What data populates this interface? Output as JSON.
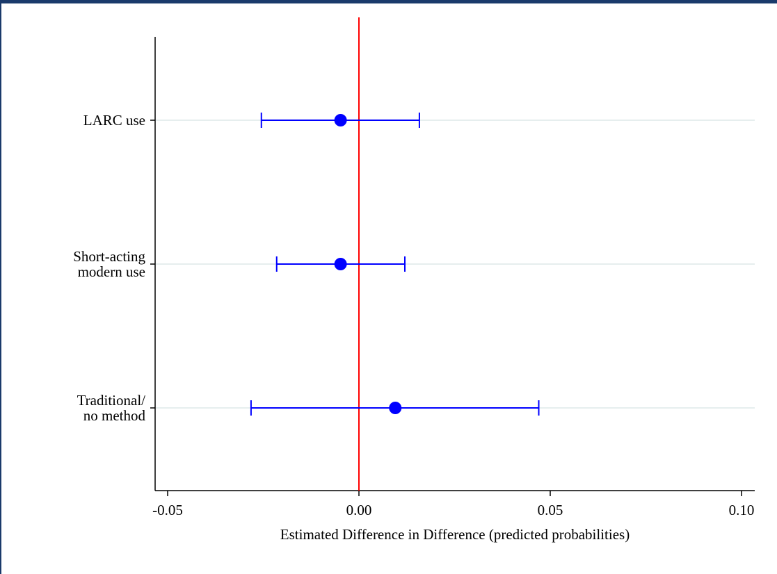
{
  "chart_data": {
    "type": "scatter",
    "subtype": "coefficient-plot",
    "title": "",
    "xlabel": "Estimated Difference in Difference (predicted probabilities)",
    "ylabel": "",
    "xlim": [
      -0.055,
      0.102
    ],
    "xticks": [
      -0.05,
      0.0,
      0.05,
      0.1
    ],
    "xtick_labels": [
      "-0.05",
      "0.00",
      "0.05",
      "0.10"
    ],
    "reference_line": {
      "x": 0.0,
      "color": "#ff0000"
    },
    "grid": "horizontal",
    "categories": [
      {
        "lines": [
          "LARC use"
        ],
        "estimate": -0.0048,
        "ci_low": -0.0255,
        "ci_high": 0.0158
      },
      {
        "lines": [
          "Short-acting",
          "modern use"
        ],
        "estimate": -0.0048,
        "ci_low": -0.0215,
        "ci_high": 0.012
      },
      {
        "lines": [
          "Traditional/",
          "no method"
        ],
        "estimate": 0.0095,
        "ci_low": -0.0282,
        "ci_high": 0.047
      }
    ],
    "colors": {
      "marker": "#0000ff",
      "ci": "#0000ff",
      "grid": "#e6eeee",
      "axis": "#000000"
    }
  }
}
